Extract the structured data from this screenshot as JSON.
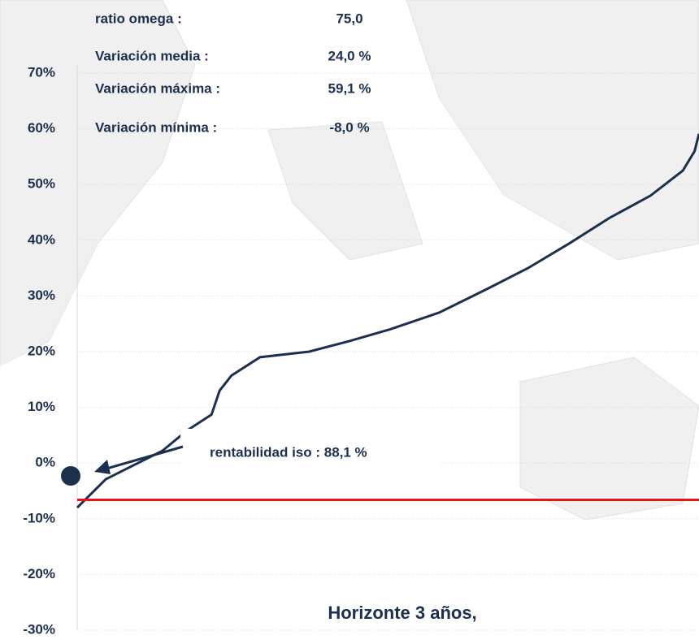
{
  "chart_data": {
    "type": "line",
    "stats": [
      {
        "label": "ratio omega :",
        "value": "75,0"
      },
      {
        "label": "Variación media :",
        "value": "24,0 %"
      },
      {
        "label": "Variación máxima :",
        "value": "59,1 %"
      },
      {
        "label": "Variación mínima :",
        "value": "-8,0 %"
      }
    ],
    "annotation": {
      "text": "rentabilidad iso : 88,1 %",
      "y": -2.3
    },
    "footer": "Horizonte 3 años,",
    "x": [
      0,
      4.6,
      13.7,
      17.6,
      21.6,
      22.9,
      24.8,
      29.4,
      37.3,
      43.8,
      50.3,
      58.2,
      66,
      72.5,
      79.1,
      85.6,
      92.2,
      97.4,
      99.3,
      100
    ],
    "series": [
      {
        "color": "#1b2f4e",
        "values": [
          -8,
          -2.9,
          2.2,
          5.8,
          8.7,
          13,
          15.7,
          19,
          20,
          21.9,
          24,
          27,
          31.3,
          35,
          39.4,
          44,
          48,
          52.5,
          56,
          59.1
        ]
      }
    ],
    "reference_line": {
      "value": -6.6,
      "color": "#e8141a"
    },
    "xlim": [
      0,
      100
    ],
    "ylim": [
      -30,
      70
    ],
    "yticks": [
      {
        "value": -30,
        "label": "-30%"
      },
      {
        "value": -20,
        "label": "-20%"
      },
      {
        "value": -10,
        "label": "-10%"
      },
      {
        "value": 0,
        "label": "0%"
      },
      {
        "value": 10,
        "label": "10%"
      },
      {
        "value": 20,
        "label": "20%"
      },
      {
        "value": 30,
        "label": "30%"
      },
      {
        "value": 40,
        "label": "40%"
      },
      {
        "value": 50,
        "label": "50%"
      },
      {
        "value": 60,
        "label": "60%"
      },
      {
        "value": 70,
        "label": "70%"
      }
    ],
    "grid": true
  }
}
